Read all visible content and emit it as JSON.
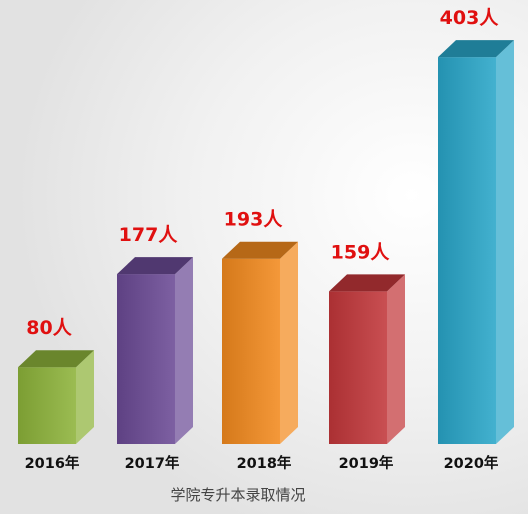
{
  "chart_data": {
    "type": "bar",
    "title": "",
    "caption": "学院专升本录取情况",
    "categories": [
      "2016年",
      "2017年",
      "2018年",
      "2019年",
      "2020年"
    ],
    "values": [
      80,
      177,
      193,
      159,
      403
    ],
    "value_labels": [
      "80人",
      "177人",
      "193人",
      "159人",
      "403人"
    ],
    "xlabel": "",
    "ylabel": "",
    "grid": false,
    "legend": "none",
    "bar_style": "3d",
    "label_color": "#e01010",
    "bar_colors": [
      "#8db33a",
      "#6b4a95",
      "#f28a1e",
      "#c2373a",
      "#29a6c9"
    ]
  }
}
